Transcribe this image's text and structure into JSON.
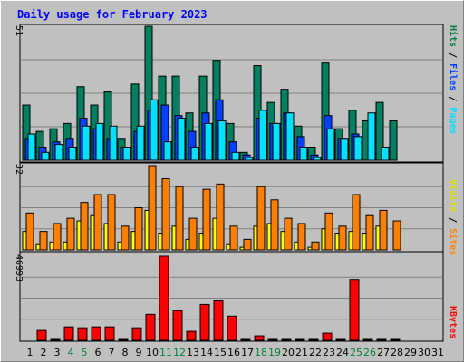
{
  "title": "Daily usage for February 2023",
  "colors": {
    "hits": "#008040",
    "files": "#0040ff",
    "pages": "#00e0ff",
    "visits": "#ffff00",
    "sites": "#ff8000",
    "kbytes": "#ff0000",
    "weekend_label": "#008040",
    "title": "#0000ff"
  },
  "legend": {
    "pages": "Pages",
    "files": "Files",
    "hits": "Hits",
    "sep": " / ",
    "sites": "Sites",
    "visits": "Visits",
    "kbytes": "KBytes"
  },
  "axis_max": {
    "hits": "51",
    "visits": "32",
    "kbytes": "46993"
  },
  "chart_data": [
    {
      "type": "bar",
      "title": "Daily usage for February 2023",
      "categories": [
        "1",
        "2",
        "3",
        "4",
        "5",
        "6",
        "7",
        "8",
        "9",
        "10",
        "11",
        "12",
        "13",
        "14",
        "15",
        "16",
        "17",
        "18",
        "19",
        "20",
        "21",
        "22",
        "23",
        "24",
        "25",
        "26",
        "27",
        "28",
        "29",
        "30",
        "31"
      ],
      "weekend_days": [
        "4",
        "5",
        "11",
        "12",
        "18",
        "19",
        "25",
        "26"
      ],
      "ylim": [
        0,
        51
      ],
      "series": [
        {
          "name": "Hits",
          "values": [
            21,
            11,
            12,
            14,
            28,
            21,
            26,
            8,
            29,
            51,
            32,
            32,
            18,
            32,
            38,
            14,
            3,
            36,
            22,
            27,
            13,
            5,
            37,
            12,
            19,
            15,
            22,
            15,
            0,
            0,
            0
          ]
        },
        {
          "name": "Files",
          "values": [
            8,
            5,
            7,
            8,
            16,
            12,
            8,
            5,
            11,
            19,
            21,
            17,
            11,
            18,
            23,
            7,
            2,
            16,
            14,
            18,
            9,
            2,
            17,
            8,
            10,
            0,
            0,
            0,
            0,
            0,
            0
          ]
        },
        {
          "name": "Pages",
          "values": [
            10,
            3,
            6,
            5,
            13,
            14,
            13,
            5,
            13,
            23,
            7,
            16,
            5,
            14,
            15,
            3,
            1,
            19,
            14,
            18,
            5,
            1,
            12,
            8,
            9,
            18,
            5,
            0,
            0,
            0,
            0
          ]
        }
      ]
    },
    {
      "type": "bar",
      "categories": [
        "1",
        "2",
        "3",
        "4",
        "5",
        "6",
        "7",
        "8",
        "9",
        "10",
        "11",
        "12",
        "13",
        "14",
        "15",
        "16",
        "17",
        "18",
        "19",
        "20",
        "21",
        "22",
        "23",
        "24",
        "25",
        "26",
        "27",
        "28",
        "29",
        "30",
        "31"
      ],
      "ylim": [
        0,
        32
      ],
      "series": [
        {
          "name": "Visits",
          "values": [
            7,
            2,
            3,
            3,
            11,
            13,
            10,
            3,
            7,
            15,
            6,
            9,
            4,
            6,
            12,
            2,
            1,
            9,
            10,
            7,
            3,
            1,
            8,
            6,
            7,
            6,
            9,
            0,
            0,
            0,
            0
          ]
        },
        {
          "name": "Sites",
          "values": [
            14,
            7,
            10,
            12,
            18,
            21,
            21,
            9,
            16,
            32,
            27,
            24,
            12,
            23,
            25,
            9,
            4,
            24,
            19,
            12,
            10,
            3,
            14,
            9,
            21,
            13,
            15,
            11,
            0,
            0,
            0
          ]
        }
      ]
    },
    {
      "type": "bar",
      "categories": [
        "1",
        "2",
        "3",
        "4",
        "5",
        "6",
        "7",
        "8",
        "9",
        "10",
        "11",
        "12",
        "13",
        "14",
        "15",
        "16",
        "17",
        "18",
        "19",
        "20",
        "21",
        "22",
        "23",
        "24",
        "25",
        "26",
        "27",
        "28",
        "29",
        "30",
        "31"
      ],
      "ylim": [
        0,
        46993
      ],
      "series": [
        {
          "name": "KBytes",
          "values": [
            0,
            5500,
            500,
            7500,
            7000,
            7500,
            7500,
            500,
            7000,
            14500,
            46993,
            16500,
            5000,
            20000,
            22000,
            13500,
            500,
            2500,
            500,
            500,
            500,
            500,
            4000,
            500,
            34000,
            500,
            500,
            500,
            0,
            0,
            0
          ]
        }
      ]
    }
  ]
}
